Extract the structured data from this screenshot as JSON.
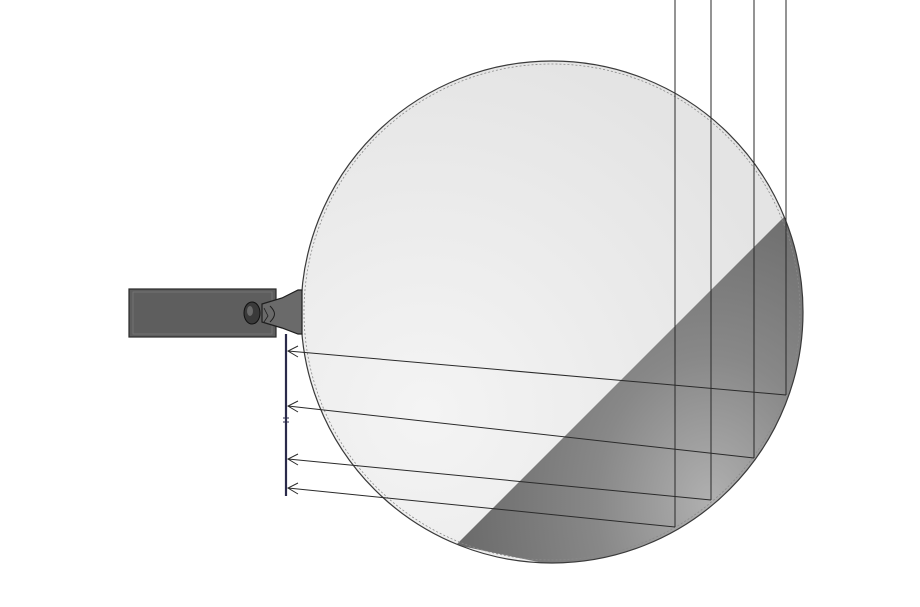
{
  "diagram": {
    "colors": {
      "background": "#ffffff",
      "dish_light": "#e6e6e6",
      "dish_shadow": "#707070",
      "line": "#2a2a2a",
      "housing": "#5a5a5a"
    }
  }
}
